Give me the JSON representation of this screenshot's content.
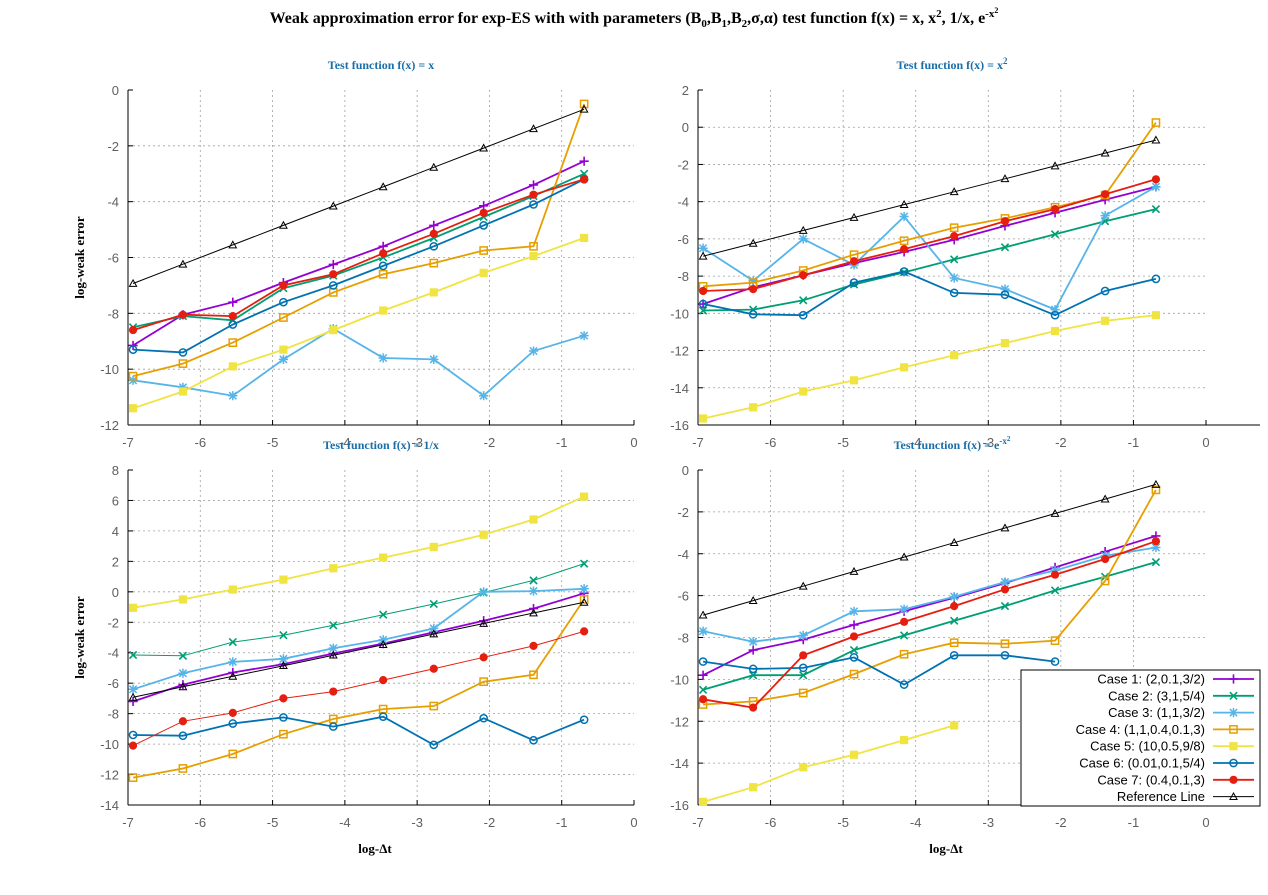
{
  "figure": {
    "title": "Weak approximation error for exp-ES with with parameters (B0,B1,B2,σ,α) test function f(x) = x, x², 1/x, e^-x²",
    "title_parts": [
      "Weak approximation error for exp-ES with with parameters (B",
      "0",
      ",B",
      "1",
      ",B",
      "2",
      ",σ,α) test function f(x) = x, x",
      "2",
      ", 1/x, e",
      "-x",
      "2"
    ]
  },
  "legend": {
    "position": "bottom-right",
    "entries": [
      "Case 1: (2,0.1,3/2)",
      "Case 2: (3,1,5/4)",
      "Case 3: (1,1,3/2)",
      "Case 4: (1,1,0.4,0.1,3)",
      "Case 5: (10,0.5,9/8)",
      "Case 6: (0.01,0.1,5/4)",
      "Case 7: (0.4,0.1,3)",
      "Reference Line"
    ]
  },
  "series_styles": [
    {
      "color": "#9400d3",
      "marker": "plus"
    },
    {
      "color": "#009e73",
      "marker": "cross"
    },
    {
      "color": "#56b4e9",
      "marker": "star"
    },
    {
      "color": "#e69f00",
      "marker": "square"
    },
    {
      "color": "#f0e442",
      "marker": "filledsquare"
    },
    {
      "color": "#0072b2",
      "marker": "circle"
    },
    {
      "color": "#e51e10",
      "marker": "filledcircle"
    },
    {
      "color": "#000000",
      "marker": "triangle"
    }
  ],
  "chart_data": [
    {
      "type": "line",
      "title": "Test function f(x) = x",
      "title_parts": [
        "Test function f(x) = x"
      ],
      "xlabel": "",
      "ylabel": "log-weak error",
      "xlim": [
        -7,
        0
      ],
      "ylim": [
        -12,
        0
      ],
      "xticks": [
        -7,
        -6,
        -5,
        -4,
        -3,
        -2,
        -1,
        0
      ],
      "yticks": [
        0,
        -2,
        -4,
        -6,
        -8,
        -10,
        -12
      ],
      "x": [
        -6.93,
        -6.24,
        -5.55,
        -4.85,
        -4.16,
        -3.47,
        -2.77,
        -2.08,
        -1.39,
        -0.69
      ],
      "grid": true,
      "series": [
        {
          "name": "Case 1: (2,0.1,3/2)",
          "values": [
            -9.15,
            -8.05,
            -7.6,
            -6.9,
            -6.25,
            -5.6,
            -4.85,
            -4.15,
            -3.4,
            -2.55
          ]
        },
        {
          "name": "Case 2: (3,1,5/4)",
          "values": [
            -8.5,
            -8.1,
            -8.25,
            -7.1,
            -6.65,
            -6.0,
            -5.3,
            -4.55,
            -3.8,
            -3.0
          ]
        },
        {
          "name": "Case 3: (1,1,3/2)",
          "values": [
            -10.4,
            -10.65,
            -10.95,
            -9.65,
            -8.55,
            -9.6,
            -9.65,
            -10.95,
            -9.35,
            -8.8
          ]
        },
        {
          "name": "Case 4: (1,1,0.4,0.1,3)",
          "values": [
            -10.25,
            -9.8,
            -9.05,
            -8.15,
            -7.25,
            -6.6,
            -6.2,
            -5.75,
            -5.6,
            -0.5
          ]
        },
        {
          "name": "Case 5: (10,0.5,9/8)",
          "values": [
            -11.4,
            -10.8,
            -9.9,
            -9.3,
            -8.6,
            -7.9,
            -7.25,
            -6.55,
            -5.95,
            -5.3
          ]
        },
        {
          "name": "Case 6: (0.01,0.1,5/4)",
          "values": [
            -9.3,
            -9.4,
            -8.4,
            -7.6,
            -7.0,
            -6.3,
            -5.6,
            -4.85,
            -4.1,
            -3.2
          ]
        },
        {
          "name": "Case 7: (0.4,0.1,3)",
          "values": [
            -8.6,
            -8.05,
            -8.1,
            -7.0,
            -6.6,
            -5.85,
            -5.15,
            -4.4,
            -3.75,
            -3.2
          ]
        },
        {
          "name": "Reference Line",
          "values": [
            -6.93,
            -6.24,
            -5.55,
            -4.85,
            -4.16,
            -3.47,
            -2.77,
            -2.08,
            -1.39,
            -0.69
          ]
        }
      ]
    },
    {
      "type": "line",
      "title": "Test function f(x) = x²",
      "title_parts": [
        "Test function f(x) = x",
        "2"
      ],
      "xlabel": "",
      "ylabel": "",
      "xlim": [
        -7,
        0
      ],
      "ylim": [
        -16,
        2
      ],
      "xticks": [
        -7,
        -6,
        -5,
        -4,
        -3,
        -2,
        -1,
        0
      ],
      "yticks": [
        2,
        0,
        -2,
        -4,
        -6,
        -8,
        -10,
        -12,
        -14,
        -16
      ],
      "x": [
        -6.93,
        -6.24,
        -5.55,
        -4.85,
        -4.16,
        -3.47,
        -2.77,
        -2.08,
        -1.39,
        -0.69
      ],
      "grid": true,
      "series": [
        {
          "name": "Case 1: (2,0.1,3/2)",
          "values": [
            -9.5,
            -8.6,
            -7.95,
            -7.3,
            -6.7,
            -6.05,
            -5.3,
            -4.6,
            -3.9,
            -3.2
          ]
        },
        {
          "name": "Case 2: (3,1,5/4)",
          "values": [
            -9.85,
            -9.8,
            -9.3,
            -8.45,
            -7.8,
            -7.1,
            -6.45,
            -5.75,
            -5.05,
            -4.4
          ]
        },
        {
          "name": "Case 3: (1,1,3/2)",
          "values": [
            -6.5,
            -8.25,
            -6.0,
            -7.4,
            -4.8,
            -8.1,
            -8.7,
            -9.8,
            -4.75,
            -3.2
          ]
        },
        {
          "name": "Case 4: (1,1,0.4,0.1,3)",
          "values": [
            -8.55,
            -8.35,
            -7.7,
            -6.85,
            -6.1,
            -5.4,
            -4.9,
            -4.3,
            -3.65,
            0.25
          ]
        },
        {
          "name": "Case 5: (10,0.5,9/8)",
          "values": [
            -15.65,
            -15.05,
            -14.2,
            -13.6,
            -12.9,
            -12.25,
            -11.6,
            -10.95,
            -10.4,
            -10.1
          ]
        },
        {
          "name": "Case 6: (0.01,0.1,5/4)",
          "values": [
            -9.5,
            -10.05,
            -10.1,
            -8.35,
            -7.75,
            -8.9,
            -9.0,
            -10.1,
            -8.8,
            -8.15
          ]
        },
        {
          "name": "Case 7: (0.4,0.1,3)",
          "values": [
            -8.8,
            -8.7,
            -7.95,
            -7.2,
            -6.55,
            -5.85,
            -5.05,
            -4.4,
            -3.6,
            -2.8
          ]
        },
        {
          "name": "Reference Line",
          "values": [
            -6.93,
            -6.24,
            -5.55,
            -4.85,
            -4.16,
            -3.47,
            -2.77,
            -2.08,
            -1.39,
            -0.69
          ]
        }
      ]
    },
    {
      "type": "line",
      "title": "Test function f(x) = 1/x",
      "title_parts": [
        "Test function f(x) = 1/x"
      ],
      "xlabel": "log-Δt",
      "ylabel": "log-weak error",
      "xlim": [
        -7,
        0
      ],
      "ylim": [
        -14,
        8
      ],
      "xticks": [
        -7,
        -6,
        -5,
        -4,
        -3,
        -2,
        -1,
        0
      ],
      "yticks": [
        8,
        6,
        4,
        2,
        0,
        -2,
        -4,
        -6,
        -8,
        -10,
        -12,
        -14
      ],
      "x": [
        -6.93,
        -6.24,
        -5.55,
        -4.85,
        -4.16,
        -3.47,
        -2.77,
        -2.08,
        -1.39,
        -0.69
      ],
      "grid": true,
      "series": [
        {
          "name": "Case 1: (2,0.1,3/2)",
          "values": [
            -7.2,
            -6.1,
            -5.3,
            -4.75,
            -4.05,
            -3.4,
            -2.65,
            -1.9,
            -1.1,
            -0.1
          ]
        },
        {
          "name": "Case 2: (3,1,5/4)",
          "values": [
            -4.15,
            -4.2,
            -3.3,
            -2.85,
            -2.2,
            -1.5,
            -0.8,
            -0.05,
            0.75,
            1.85
          ]
        },
        {
          "name": "Case 3: (1,1,3/2)",
          "values": [
            -6.4,
            -5.35,
            -4.6,
            -4.4,
            -3.7,
            -3.15,
            -2.4,
            0.0,
            0.05,
            0.2
          ]
        },
        {
          "name": "Case 4: (1,1,0.4,0.1,3)",
          "values": [
            -12.2,
            -11.6,
            -10.65,
            -9.35,
            -8.35,
            -7.7,
            -7.5,
            -5.9,
            -5.45,
            -0.5
          ]
        },
        {
          "name": "Case 5: (10,0.5,9/8)",
          "values": [
            -1.05,
            -0.5,
            0.15,
            0.8,
            1.55,
            2.25,
            2.95,
            3.75,
            4.75,
            6.25
          ]
        },
        {
          "name": "Case 6: (0.01,0.1,5/4)",
          "values": [
            -9.4,
            -9.45,
            -8.65,
            -8.25,
            -8.85,
            -8.2,
            -10.05,
            -8.3,
            -9.75,
            -8.4
          ]
        },
        {
          "name": "Case 7: (0.4,0.1,3)",
          "values": [
            -10.1,
            -8.5,
            -7.95,
            -7.0,
            -6.55,
            -5.8,
            -5.05,
            -4.3,
            -3.55,
            -2.6
          ]
        },
        {
          "name": "Reference Line",
          "values": [
            -6.93,
            -6.24,
            -5.55,
            -4.85,
            -4.16,
            -3.47,
            -2.77,
            -2.08,
            -1.39,
            -0.69
          ]
        }
      ]
    },
    {
      "type": "line",
      "title": "Test function f(x) = e^-x²",
      "title_parts": [
        "Test function f(x) = e",
        "-x",
        "2"
      ],
      "xlabel": "log-Δt",
      "ylabel": "",
      "xlim": [
        -7,
        0
      ],
      "ylim": [
        -16,
        0
      ],
      "xticks": [
        -7,
        -6,
        -5,
        -4,
        -3,
        -2,
        -1,
        0
      ],
      "yticks": [
        0,
        -2,
        -4,
        -6,
        -8,
        -10,
        -12,
        -14,
        -16
      ],
      "x": [
        -6.93,
        -6.24,
        -5.55,
        -4.85,
        -4.16,
        -3.47,
        -2.77,
        -2.08,
        -1.39,
        -0.69
      ],
      "grid": true,
      "series": [
        {
          "name": "Case 1: (2,0.1,3/2)",
          "values": [
            -9.8,
            -8.6,
            -8.1,
            -7.4,
            -6.75,
            -6.1,
            -5.4,
            -4.65,
            -3.9,
            -3.15
          ]
        },
        {
          "name": "Case 2: (3,1,5/4)",
          "values": [
            -10.5,
            -9.8,
            -9.8,
            -8.6,
            -7.9,
            -7.2,
            -6.5,
            -5.75,
            -5.1,
            -4.4
          ]
        },
        {
          "name": "Case 3: (1,1,3/2)",
          "values": [
            -7.7,
            -8.2,
            -7.9,
            -6.75,
            -6.65,
            -6.05,
            -5.35,
            -4.8,
            -4.1,
            -3.7
          ]
        },
        {
          "name": "Case 4: (1,1,0.4,0.1,3)",
          "values": [
            -11.2,
            -11.05,
            -10.65,
            -9.75,
            -8.8,
            -8.25,
            -8.3,
            -8.15,
            -5.3,
            -0.95
          ]
        },
        {
          "name": "Case 5: (10,0.5,9/8)",
          "values": [
            -15.85,
            -15.15,
            -14.2,
            -13.6,
            -12.9,
            -12.2,
            null,
            null,
            null,
            null
          ]
        },
        {
          "name": "Case 6: (0.01,0.1,5/4)",
          "values": [
            -9.15,
            -9.5,
            -9.45,
            -8.95,
            -10.25,
            -8.85,
            -8.85,
            -9.15,
            null,
            null
          ]
        },
        {
          "name": "Case 7: (0.4,0.1,3)",
          "values": [
            -10.95,
            -11.35,
            -8.85,
            -7.95,
            -7.25,
            -6.5,
            -5.7,
            -5.0,
            -4.25,
            -3.4
          ]
        },
        {
          "name": "Reference Line",
          "values": [
            -6.93,
            -6.24,
            -5.55,
            -4.85,
            -4.16,
            -3.47,
            -2.77,
            -2.08,
            -1.39,
            -0.69
          ]
        }
      ]
    }
  ]
}
